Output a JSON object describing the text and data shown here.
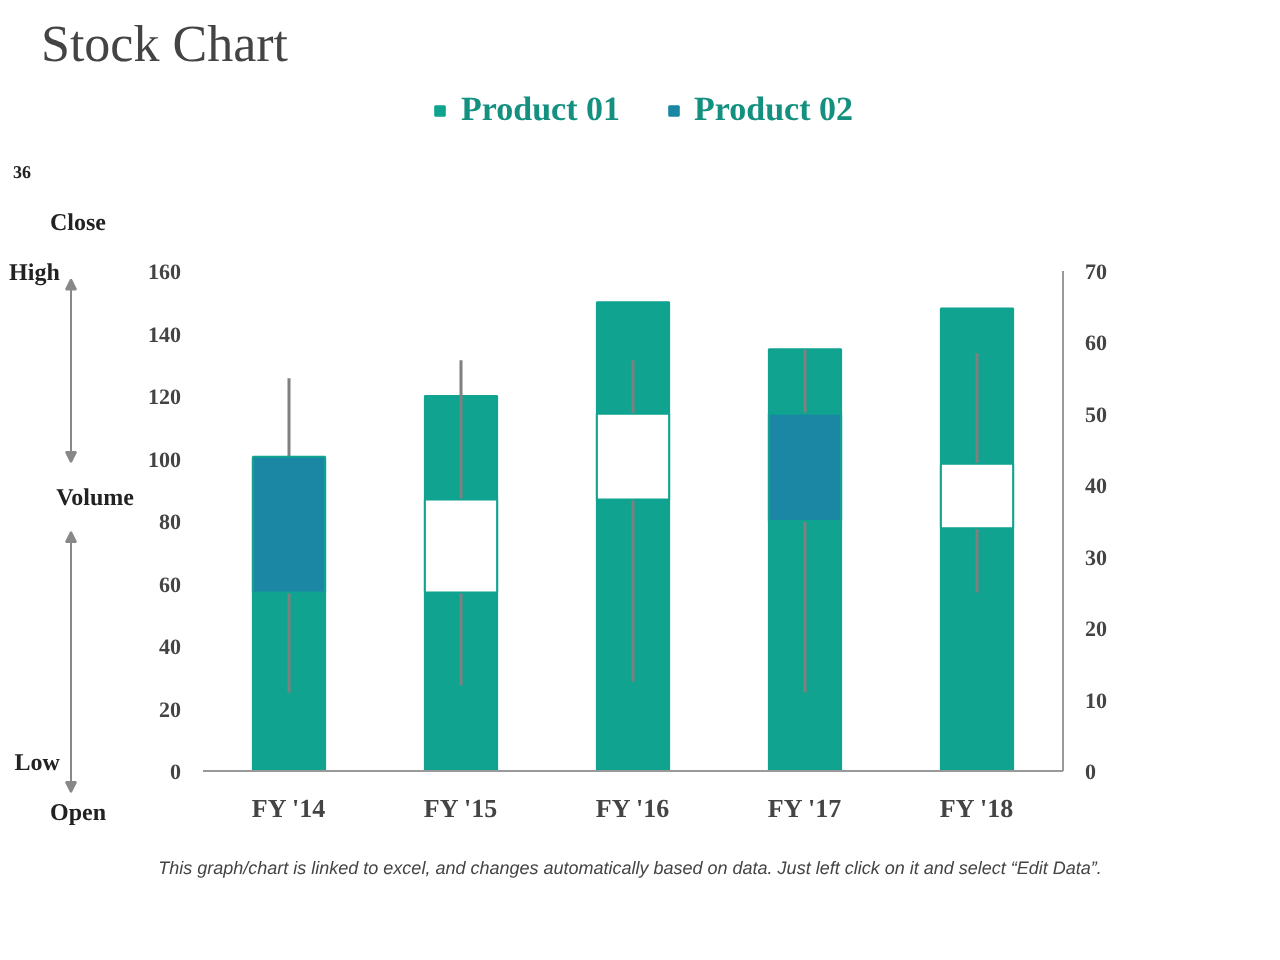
{
  "chart_data": {
    "type": "bar",
    "title": "Stock Chart",
    "categories": [
      "FY '14",
      "FY '15",
      "FY '16",
      "FY '17",
      "FY '18"
    ],
    "series": [
      {
        "name": "Product 01",
        "color": "#0fa390",
        "values": [
          100,
          120,
          150,
          135,
          148
        ]
      },
      {
        "name": "Product 02",
        "type": "candlestick",
        "axis": "y2",
        "color": "#1b87a5",
        "colors": [
          "#1b87a5",
          "#ffffff",
          "#ffffff",
          "#1b87a5",
          "#ffffff"
        ],
        "ohlc": [
          [
            44,
            55,
            11,
            25
          ],
          [
            25,
            57.5,
            12,
            38
          ],
          [
            38,
            57.5,
            12.5,
            50
          ],
          [
            50,
            59,
            11,
            35
          ],
          [
            34,
            58.5,
            25,
            43
          ]
        ]
      }
    ],
    "ylim": [
      0,
      160
    ],
    "yticks": [
      0,
      20,
      40,
      60,
      80,
      100,
      120,
      140,
      160
    ],
    "y2lim": [
      0,
      70
    ],
    "y2ticks": [
      0,
      10,
      20,
      30,
      40,
      50,
      60,
      70
    ],
    "legend": "top",
    "annotations": [
      "36",
      "Close",
      "High",
      "Volume",
      "Low",
      "Open",
      "This graph/chart is linked to excel, and changes automatically based on data. Just left click on it and select “Edit Data”."
    ]
  }
}
